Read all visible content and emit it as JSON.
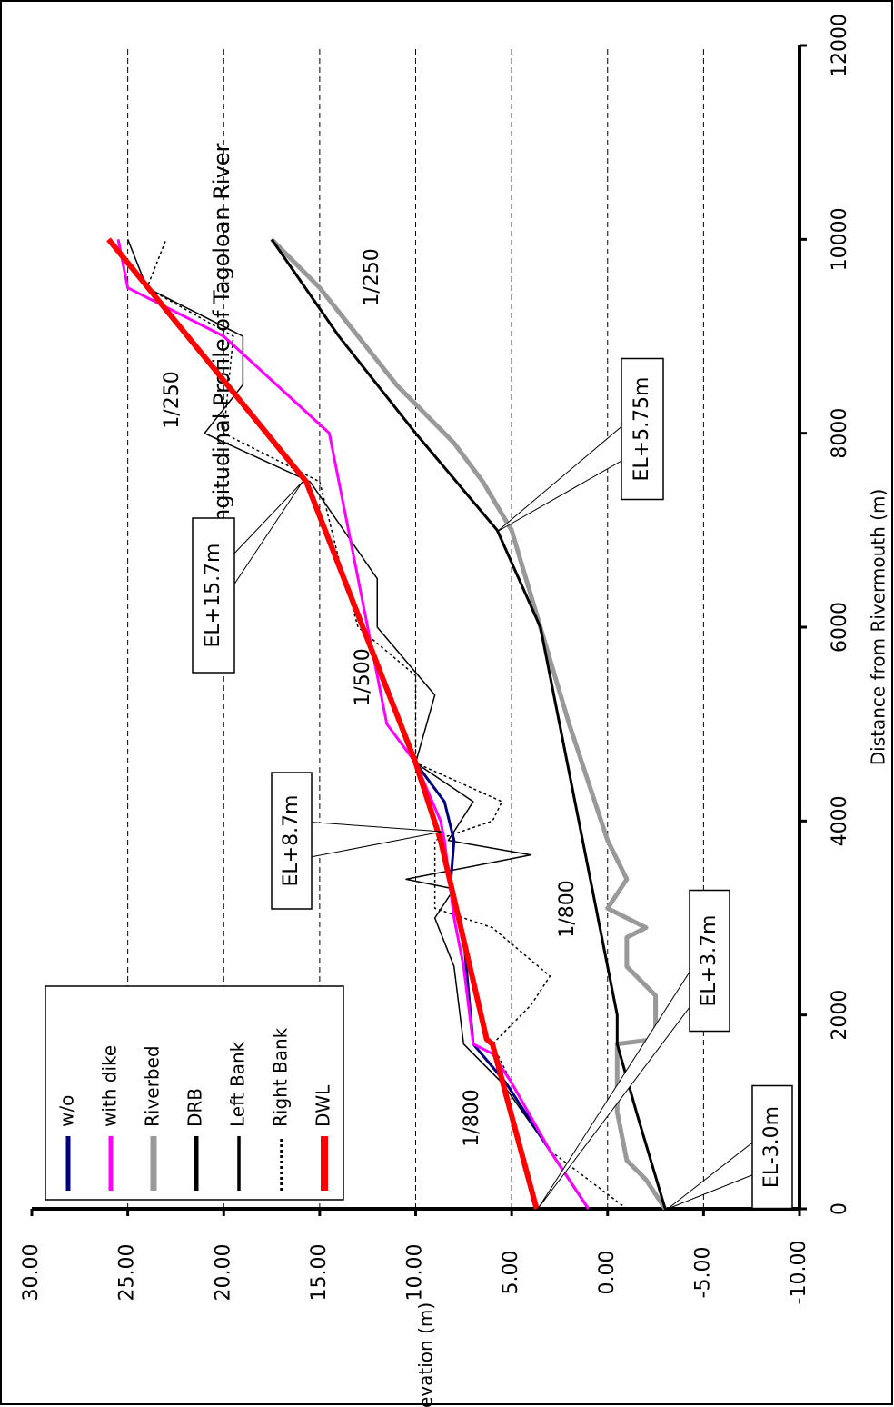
{
  "chart_data": {
    "type": "line",
    "title": "Longitudinal Profile of Tagoloan River",
    "x_label": "Distance from Rivermouth (m)",
    "y_label": "Elevation (m)",
    "xlim": [
      0,
      12000
    ],
    "xticks": [
      0,
      2000,
      4000,
      6000,
      8000,
      10000,
      12000
    ],
    "ylim": [
      -10,
      30
    ],
    "yticks": [
      {
        "value": -10,
        "label": "-10.00"
      },
      {
        "value": -5,
        "label": "-5.00"
      },
      {
        "value": 0,
        "label": "0.00"
      },
      {
        "value": 5,
        "label": "5.00"
      },
      {
        "value": 10,
        "label": "10.00"
      },
      {
        "value": 15,
        "label": "15.00"
      },
      {
        "value": 20,
        "label": "20.00"
      },
      {
        "value": 25,
        "label": "25.00"
      },
      {
        "value": 30,
        "label": "30.00"
      }
    ],
    "grid": true,
    "legend": "upper left",
    "series": [
      {
        "name": "w/o",
        "color": "#000080",
        "x": [
          0,
          600,
          1300,
          1700,
          2800,
          3300,
          3800,
          4200,
          4600
        ],
        "values": [
          1,
          3,
          5.3,
          7,
          7.5,
          8.2,
          8,
          8.5,
          10
        ]
      },
      {
        "name": "with dike",
        "color": "#ff00ff",
        "x": [
          0,
          600,
          1300,
          1600,
          1700,
          2500,
          3000,
          3800,
          4000,
          4600,
          5000,
          6000,
          7500,
          8000,
          9000,
          9500,
          10000
        ],
        "values": [
          1,
          3,
          5,
          6,
          7,
          7.5,
          8,
          8.5,
          8.7,
          10,
          11.5,
          12.5,
          14,
          14.5,
          20,
          25,
          25.5
        ]
      },
      {
        "name": "Riverbed",
        "color": "#999999",
        "x": [
          0,
          300,
          500,
          1000,
          1700,
          1750,
          2200,
          2500,
          2800,
          2900,
          3100,
          3400,
          3800,
          4100,
          5000,
          6000,
          7000,
          7500,
          7900,
          8500,
          9500,
          10000
        ],
        "values": [
          -3,
          -2,
          -1,
          -0.5,
          -0.5,
          -2.5,
          -2.5,
          -1,
          -1,
          -2,
          0,
          -1,
          0,
          0.5,
          2,
          3.5,
          5,
          6.5,
          8,
          11,
          15,
          17.5
        ]
      },
      {
        "name": "DRB",
        "color": "#000000",
        "x": [
          0,
          1000,
          1700,
          2000,
          3000,
          4000,
          5000,
          6000,
          7000,
          8000,
          9000,
          10000
        ],
        "values": [
          -3,
          -1.5,
          -0.5,
          -0.5,
          0.5,
          1.5,
          2.5,
          3.5,
          5.75,
          10,
          14,
          17.5
        ]
      },
      {
        "name": "Left Bank",
        "color": "#000000",
        "x": [
          0,
          600,
          1300,
          1700,
          2500,
          3000,
          3300,
          3400,
          3650,
          3800,
          4200,
          4600,
          5300,
          6000,
          6500,
          7500,
          8000,
          8500,
          9000,
          9500,
          10000
        ],
        "values": [
          1,
          3,
          5.5,
          7.5,
          8,
          9,
          8,
          10.5,
          4,
          8.3,
          7,
          10,
          9,
          12,
          12,
          15.5,
          21,
          19,
          19,
          24,
          25
        ]
      },
      {
        "name": "Right Bank",
        "color": "#000000",
        "x": [
          0,
          600,
          1300,
          1700,
          2100,
          2400,
          2900,
          3100,
          3800,
          4000,
          4200,
          4600,
          5500,
          6000,
          6700,
          7500,
          8000,
          9000,
          9500,
          10000
        ],
        "values": [
          -1,
          3,
          5,
          6,
          4,
          3,
          6,
          9,
          9,
          6,
          5.5,
          10,
          10,
          13,
          14,
          15,
          20,
          19.5,
          24,
          23
        ]
      },
      {
        "name": "DWL",
        "color": "#ff0000",
        "x": [
          0,
          1700,
          1750,
          3800,
          4600,
          7500,
          10000
        ],
        "values": [
          3.7,
          6,
          6.3,
          8.7,
          10,
          15.7,
          26
        ]
      }
    ],
    "annotations": [
      "EL-3.0m",
      "EL+3.7m",
      "EL+8.7m",
      "EL+15.7m",
      "EL+5.75m",
      "1/800",
      "1/800",
      "1/500",
      "1/250",
      "1/250"
    ]
  }
}
